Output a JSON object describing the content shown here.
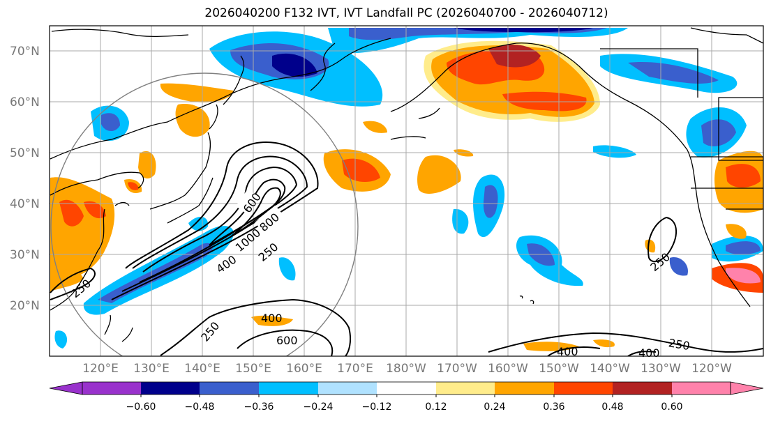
{
  "title": "2026040200 F132 IVT, IVT Landfall PC (2026040700 - 2026040712)",
  "map": {
    "projection": "equirectangular",
    "extent": {
      "lon_range_deg_east": [
        110,
        250
      ],
      "lat_range": [
        10,
        75
      ]
    },
    "lat_labels": [
      "20°N",
      "30°N",
      "40°N",
      "50°N",
      "60°N",
      "70°N"
    ],
    "lon_labels": [
      "120°E",
      "130°E",
      "140°E",
      "150°E",
      "160°E",
      "170°E",
      "180°W",
      "170°W",
      "160°W",
      "150°W",
      "140°W",
      "130°W",
      "120°W"
    ],
    "gridlines": true,
    "range_ring": "grey circle centred near 40°N 144°E"
  },
  "contours": {
    "field": "IVT",
    "line_color": "#000000",
    "labels": [
      "250",
      "250",
      "250",
      "250",
      "400",
      "400",
      "400",
      "400",
      "600",
      "600",
      "800",
      "1000"
    ]
  },
  "colorbar": {
    "extend": "both",
    "ticks": [
      "−0.60",
      "−0.48",
      "−0.36",
      "−0.24",
      "−0.12",
      "0.12",
      "0.24",
      "0.36",
      "0.48",
      "0.60"
    ],
    "colors": [
      "#9932cc",
      "#00008b",
      "#3a5fcd",
      "#00bfff",
      "#b0e2ff",
      "#ffffff",
      "#ffec8b",
      "#ffa500",
      "#ff4500",
      "#b22222",
      "#ff82ab"
    ]
  }
}
